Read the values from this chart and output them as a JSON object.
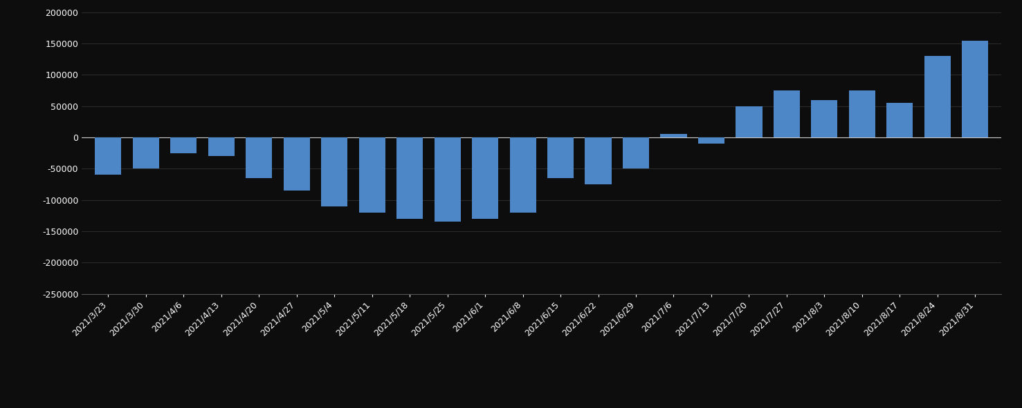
{
  "categories": [
    "2021/3/23",
    "2021/3/30",
    "2021/4/6",
    "2021/4/13",
    "2021/4/20",
    "2021/4/27",
    "2021/5/4",
    "2021/5/11",
    "2021/5/18",
    "2021/5/25",
    "2021/6/1",
    "2021/6/8",
    "2021/6/15",
    "2021/6/22",
    "2021/6/29",
    "2021/7/6",
    "2021/7/13",
    "2021/7/20",
    "2021/7/27",
    "2021/8/3",
    "2021/8/10",
    "2021/8/17",
    "2021/8/24",
    "2021/8/31"
  ],
  "values": [
    -60000,
    -50000,
    -25000,
    -30000,
    -65000,
    -85000,
    -110000,
    -120000,
    -130000,
    -135000,
    -130000,
    -120000,
    -65000,
    -75000,
    -50000,
    5000,
    -10000,
    50000,
    75000,
    60000,
    75000,
    55000,
    130000,
    155000
  ],
  "bar_color": "#4d87c7",
  "background_color": "#0d0d0d",
  "grid_color": "#2a2a2a",
  "text_color": "#ffffff",
  "ylim": [
    -250000,
    200000
  ],
  "yticks": [
    -250000,
    -200000,
    -150000,
    -100000,
    -50000,
    0,
    50000,
    100000,
    150000,
    200000
  ]
}
